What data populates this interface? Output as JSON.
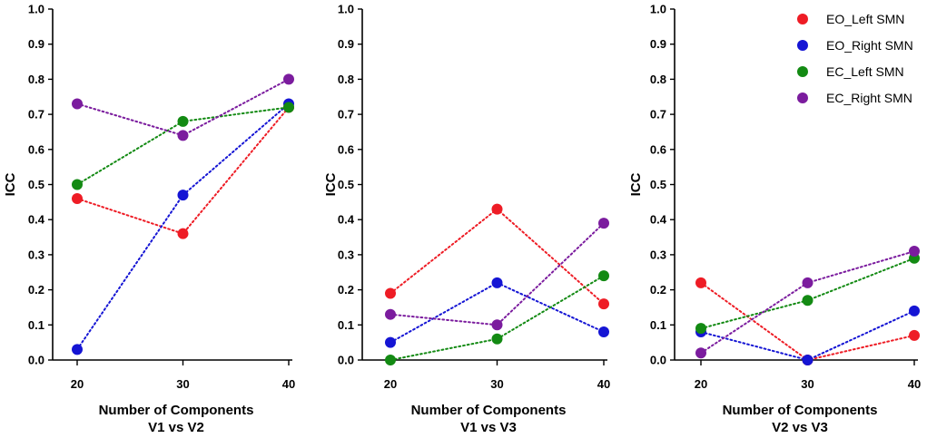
{
  "chart_data": [
    {
      "type": "line",
      "title": "",
      "xlabel": "Number of Components",
      "subtitle": "V1 vs V2",
      "ylabel": "ICC",
      "x": [
        20,
        30,
        40
      ],
      "xticks": [
        "20",
        "30",
        "40"
      ],
      "yticks": [
        "0.0",
        "0.1",
        "0.2",
        "0.3",
        "0.4",
        "0.5",
        "0.6",
        "0.7",
        "0.8",
        "0.9",
        "1.0"
      ],
      "ylim": [
        0,
        1.0
      ],
      "series": [
        {
          "name": "EO_Left SMN",
          "color": "#ee1c25",
          "values": [
            0.46,
            0.36,
            0.72
          ]
        },
        {
          "name": "EO_Right SMN",
          "color": "#1515d4",
          "values": [
            0.03,
            0.47,
            0.73
          ]
        },
        {
          "name": "EC_Left SMN",
          "color": "#138a13",
          "values": [
            0.5,
            0.68,
            0.72
          ]
        },
        {
          "name": "EC_Right SMN",
          "color": "#7b1c9e",
          "values": [
            0.73,
            0.64,
            0.8
          ]
        }
      ]
    },
    {
      "type": "line",
      "title": "",
      "xlabel": "Number of Components",
      "subtitle": "V1 vs V3",
      "ylabel": "ICC",
      "x": [
        20,
        30,
        40
      ],
      "xticks": [
        "20",
        "30",
        "40"
      ],
      "yticks": [
        "0.0",
        "0.1",
        "0.2",
        "0.3",
        "0.4",
        "0.5",
        "0.6",
        "0.7",
        "0.8",
        "0.9",
        "1.0"
      ],
      "ylim": [
        0,
        1.0
      ],
      "series": [
        {
          "name": "EO_Left SMN",
          "color": "#ee1c25",
          "values": [
            0.19,
            0.43,
            0.16
          ]
        },
        {
          "name": "EO_Right SMN",
          "color": "#1515d4",
          "values": [
            0.05,
            0.22,
            0.08
          ]
        },
        {
          "name": "EC_Left SMN",
          "color": "#138a13",
          "values": [
            0.0,
            0.06,
            0.24
          ]
        },
        {
          "name": "EC_Right SMN",
          "color": "#7b1c9e",
          "values": [
            0.13,
            0.1,
            0.39
          ]
        }
      ]
    },
    {
      "type": "line",
      "title": "",
      "xlabel": "Number of Components",
      "subtitle": "V2 vs V3",
      "ylabel": "ICC",
      "x": [
        20,
        30,
        40
      ],
      "xticks": [
        "20",
        "30",
        "40"
      ],
      "yticks": [
        "0.0",
        "0.1",
        "0.2",
        "0.3",
        "0.4",
        "0.5",
        "0.6",
        "0.7",
        "0.8",
        "0.9",
        "1.0"
      ],
      "ylim": [
        0,
        1.0
      ],
      "series": [
        {
          "name": "EO_Left SMN",
          "color": "#ee1c25",
          "values": [
            0.22,
            0.0,
            0.07
          ]
        },
        {
          "name": "EO_Right SMN",
          "color": "#1515d4",
          "values": [
            0.08,
            0.0,
            0.14
          ]
        },
        {
          "name": "EC_Left SMN",
          "color": "#138a13",
          "values": [
            0.09,
            0.17,
            0.29
          ]
        },
        {
          "name": "EC_Right SMN",
          "color": "#7b1c9e",
          "values": [
            0.02,
            0.22,
            0.31
          ]
        }
      ]
    }
  ],
  "legend": {
    "position": "top-right",
    "items": [
      {
        "label": "EO_Left SMN",
        "color": "#ee1c25"
      },
      {
        "label": "EO_Right SMN",
        "color": "#1515d4"
      },
      {
        "label": "EC_Left SMN",
        "color": "#138a13"
      },
      {
        "label": "EC_Right SMN",
        "color": "#7b1c9e"
      }
    ]
  }
}
